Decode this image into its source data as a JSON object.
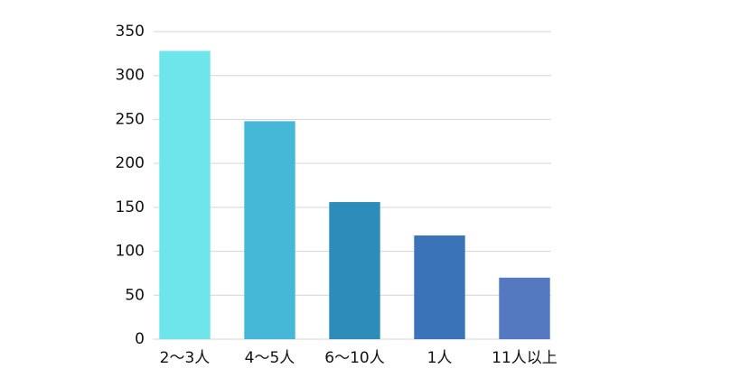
{
  "chart_data": {
    "type": "bar",
    "categories": [
      "2～3人",
      "4～5人",
      "6～10人",
      "1人",
      "11人以上"
    ],
    "values": [
      328,
      248,
      156,
      118,
      70
    ],
    "colors": [
      "#6de5ea",
      "#45b8d8",
      "#2e8cbb",
      "#3a73b8",
      "#5479c0"
    ],
    "ylim": [
      0,
      350
    ],
    "yticks": [
      0,
      50,
      100,
      150,
      200,
      250,
      300,
      350
    ],
    "grid": true
  }
}
